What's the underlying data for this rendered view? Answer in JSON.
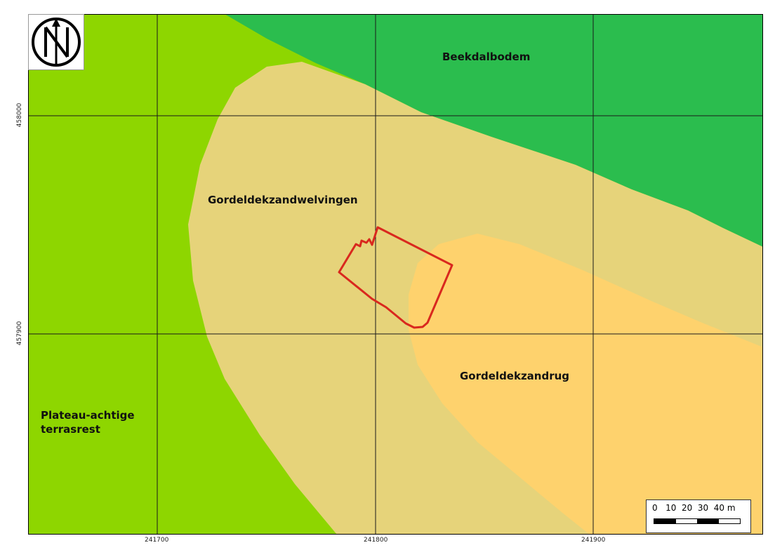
{
  "map": {
    "units": [
      {
        "id": "beekdalbodem",
        "label": "Beekdalbodem",
        "color": "#2bbd4e"
      },
      {
        "id": "gordeldekzandwelvingen",
        "label": "Gordeldekzandwelvingen",
        "color": "#e6d37a"
      },
      {
        "id": "gordeldekzandrug",
        "label": "Gordeldekzandrug",
        "color": "#fed26d"
      },
      {
        "id": "plateau",
        "label_line1": "Plateau-achtige",
        "label_line2": "terrasrest",
        "color": "#8ed600"
      }
    ],
    "outline_color": "#d9281e",
    "grid_color": "#1a1a1a",
    "x_ticks": [
      "241700",
      "241800",
      "241900"
    ],
    "y_ticks": [
      "458000",
      "457900"
    ],
    "scalebar": {
      "text": "0   10  20  30  40 m"
    },
    "north_arrow": {
      "icon": "north-arrow-icon"
    }
  }
}
